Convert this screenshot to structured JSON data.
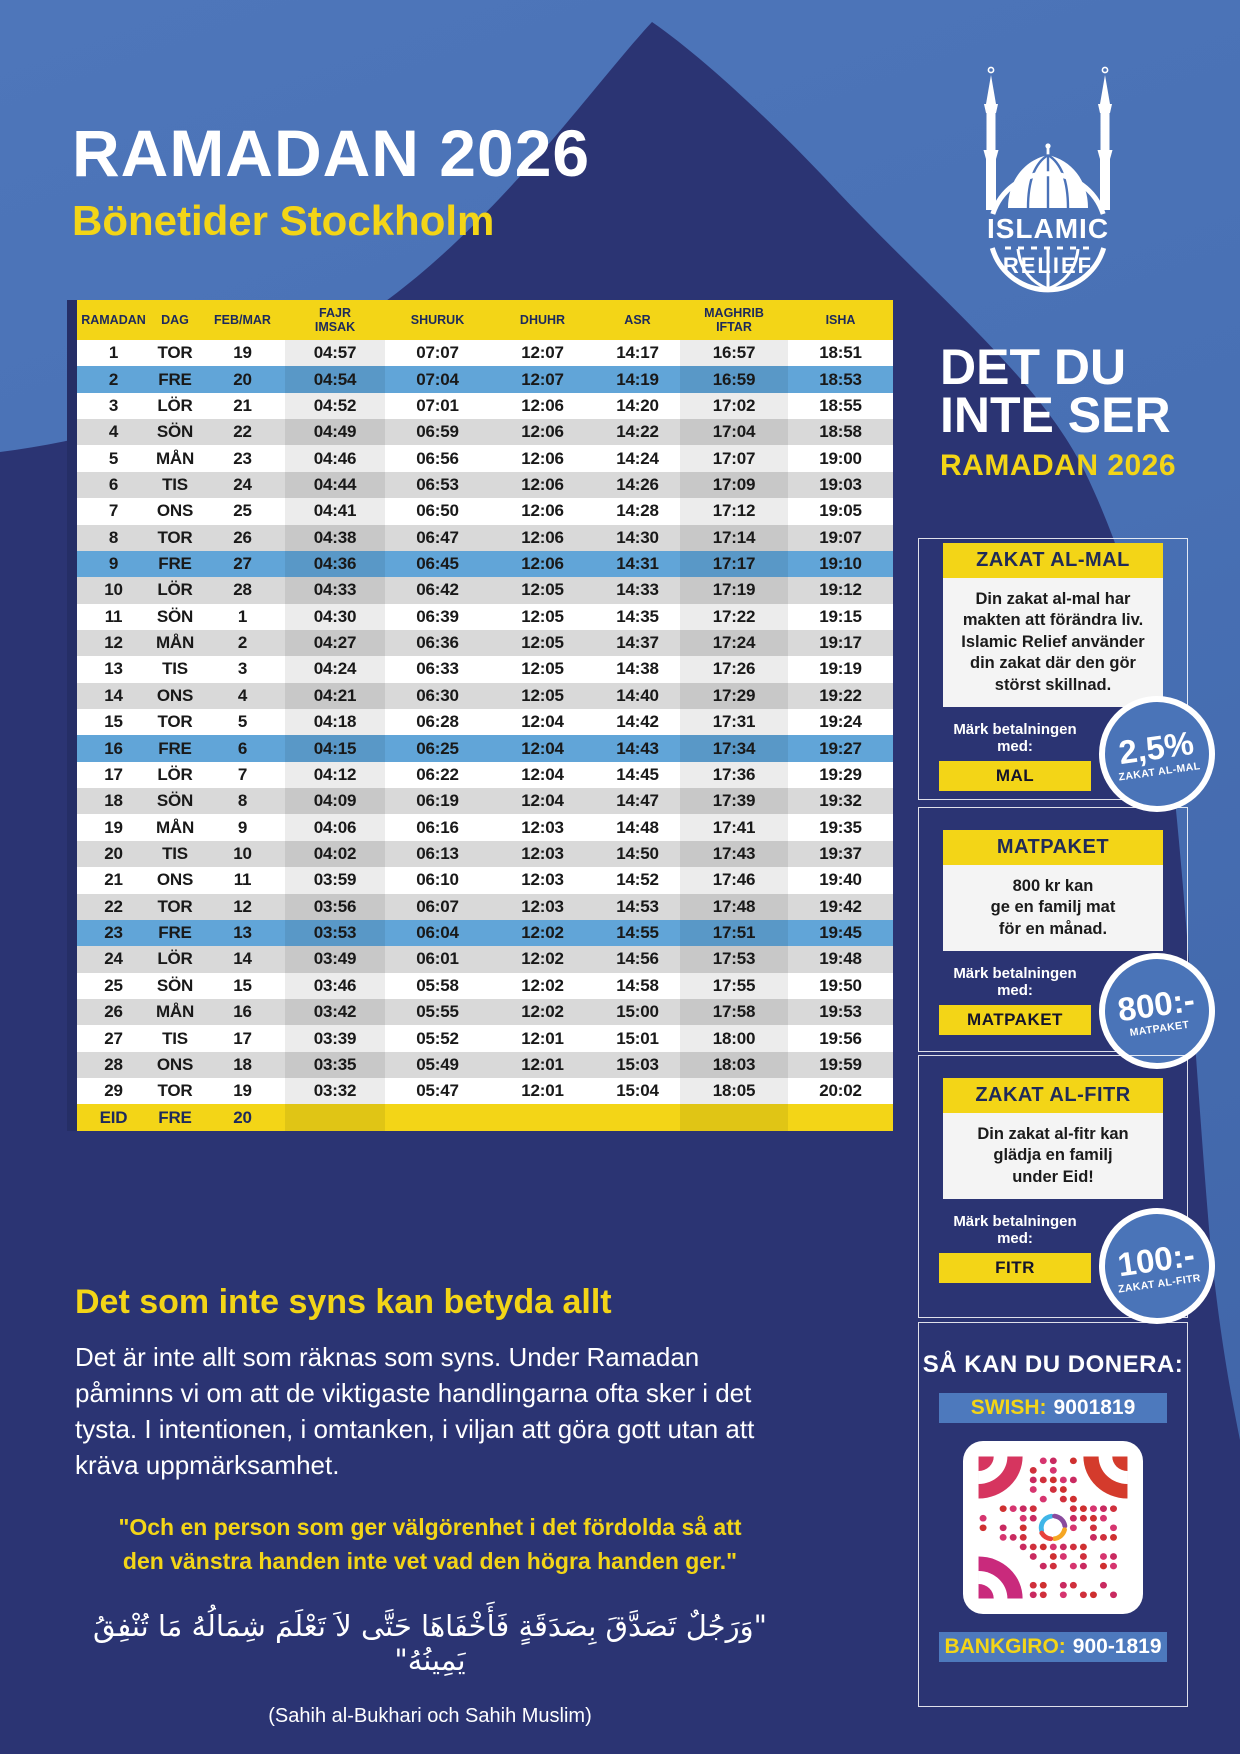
{
  "header": {
    "title": "RAMADAN 2026",
    "subtitle": "Bönetider Stockholm"
  },
  "logo": {
    "line1": "ISLAMIC",
    "line2": "RELIEF"
  },
  "campaign": {
    "title": "DET DU\nINTE SER",
    "subtitle": "RAMADAN 2026"
  },
  "table": {
    "columns": [
      [
        "RAMADAN"
      ],
      [
        "DAG"
      ],
      [
        "FEB/MAR"
      ],
      [
        "FAJR",
        "IMSAK"
      ],
      [
        "SHURUK"
      ],
      [
        "DHUHR"
      ],
      [
        "ASR"
      ],
      [
        "MAGHRIB",
        "IFTAR"
      ],
      [
        "ISHA"
      ]
    ],
    "rows": [
      {
        "ramadan": "1",
        "dag": "TOR",
        "datum": "19",
        "times": [
          "04:57",
          "07:07",
          "12:07",
          "14:17",
          "16:57",
          "18:51"
        ]
      },
      {
        "ramadan": "2",
        "dag": "FRE",
        "datum": "20",
        "times": [
          "04:54",
          "07:04",
          "12:07",
          "14:19",
          "16:59",
          "18:53"
        ]
      },
      {
        "ramadan": "3",
        "dag": "LÖR",
        "datum": "21",
        "times": [
          "04:52",
          "07:01",
          "12:06",
          "14:20",
          "17:02",
          "18:55"
        ]
      },
      {
        "ramadan": "4",
        "dag": "SÖN",
        "datum": "22",
        "times": [
          "04:49",
          "06:59",
          "12:06",
          "14:22",
          "17:04",
          "18:58"
        ]
      },
      {
        "ramadan": "5",
        "dag": "MÅN",
        "datum": "23",
        "times": [
          "04:46",
          "06:56",
          "12:06",
          "14:24",
          "17:07",
          "19:00"
        ]
      },
      {
        "ramadan": "6",
        "dag": "TIS",
        "datum": "24",
        "times": [
          "04:44",
          "06:53",
          "12:06",
          "14:26",
          "17:09",
          "19:03"
        ]
      },
      {
        "ramadan": "7",
        "dag": "ONS",
        "datum": "25",
        "times": [
          "04:41",
          "06:50",
          "12:06",
          "14:28",
          "17:12",
          "19:05"
        ]
      },
      {
        "ramadan": "8",
        "dag": "TOR",
        "datum": "26",
        "times": [
          "04:38",
          "06:47",
          "12:06",
          "14:30",
          "17:14",
          "19:07"
        ]
      },
      {
        "ramadan": "9",
        "dag": "FRE",
        "datum": "27",
        "times": [
          "04:36",
          "06:45",
          "12:06",
          "14:31",
          "17:17",
          "19:10"
        ]
      },
      {
        "ramadan": "10",
        "dag": "LÖR",
        "datum": "28",
        "times": [
          "04:33",
          "06:42",
          "12:05",
          "14:33",
          "17:19",
          "19:12"
        ]
      },
      {
        "ramadan": "11",
        "dag": "SÖN",
        "datum": "1",
        "times": [
          "04:30",
          "06:39",
          "12:05",
          "14:35",
          "17:22",
          "19:15"
        ]
      },
      {
        "ramadan": "12",
        "dag": "MÅN",
        "datum": "2",
        "times": [
          "04:27",
          "06:36",
          "12:05",
          "14:37",
          "17:24",
          "19:17"
        ]
      },
      {
        "ramadan": "13",
        "dag": "TIS",
        "datum": "3",
        "times": [
          "04:24",
          "06:33",
          "12:05",
          "14:38",
          "17:26",
          "19:19"
        ]
      },
      {
        "ramadan": "14",
        "dag": "ONS",
        "datum": "4",
        "times": [
          "04:21",
          "06:30",
          "12:05",
          "14:40",
          "17:29",
          "19:22"
        ]
      },
      {
        "ramadan": "15",
        "dag": "TOR",
        "datum": "5",
        "times": [
          "04:18",
          "06:28",
          "12:04",
          "14:42",
          "17:31",
          "19:24"
        ]
      },
      {
        "ramadan": "16",
        "dag": "FRE",
        "datum": "6",
        "times": [
          "04:15",
          "06:25",
          "12:04",
          "14:43",
          "17:34",
          "19:27"
        ]
      },
      {
        "ramadan": "17",
        "dag": "LÖR",
        "datum": "7",
        "times": [
          "04:12",
          "06:22",
          "12:04",
          "14:45",
          "17:36",
          "19:29"
        ]
      },
      {
        "ramadan": "18",
        "dag": "SÖN",
        "datum": "8",
        "times": [
          "04:09",
          "06:19",
          "12:04",
          "14:47",
          "17:39",
          "19:32"
        ]
      },
      {
        "ramadan": "19",
        "dag": "MÅN",
        "datum": "9",
        "times": [
          "04:06",
          "06:16",
          "12:03",
          "14:48",
          "17:41",
          "19:35"
        ]
      },
      {
        "ramadan": "20",
        "dag": "TIS",
        "datum": "10",
        "times": [
          "04:02",
          "06:13",
          "12:03",
          "14:50",
          "17:43",
          "19:37"
        ]
      },
      {
        "ramadan": "21",
        "dag": "ONS",
        "datum": "11",
        "times": [
          "03:59",
          "06:10",
          "12:03",
          "14:52",
          "17:46",
          "19:40"
        ]
      },
      {
        "ramadan": "22",
        "dag": "TOR",
        "datum": "12",
        "times": [
          "03:56",
          "06:07",
          "12:03",
          "14:53",
          "17:48",
          "19:42"
        ]
      },
      {
        "ramadan": "23",
        "dag": "FRE",
        "datum": "13",
        "times": [
          "03:53",
          "06:04",
          "12:02",
          "14:55",
          "17:51",
          "19:45"
        ]
      },
      {
        "ramadan": "24",
        "dag": "LÖR",
        "datum": "14",
        "times": [
          "03:49",
          "06:01",
          "12:02",
          "14:56",
          "17:53",
          "19:48"
        ]
      },
      {
        "ramadan": "25",
        "dag": "SÖN",
        "datum": "15",
        "times": [
          "03:46",
          "05:58",
          "12:02",
          "14:58",
          "17:55",
          "19:50"
        ]
      },
      {
        "ramadan": "26",
        "dag": "MÅN",
        "datum": "16",
        "times": [
          "03:42",
          "05:55",
          "12:02",
          "15:00",
          "17:58",
          "19:53"
        ]
      },
      {
        "ramadan": "27",
        "dag": "TIS",
        "datum": "17",
        "times": [
          "03:39",
          "05:52",
          "12:01",
          "15:01",
          "18:00",
          "19:56"
        ]
      },
      {
        "ramadan": "28",
        "dag": "ONS",
        "datum": "18",
        "times": [
          "03:35",
          "05:49",
          "12:01",
          "15:03",
          "18:03",
          "19:59"
        ]
      },
      {
        "ramadan": "29",
        "dag": "TOR",
        "datum": "19",
        "times": [
          "03:32",
          "05:47",
          "12:01",
          "15:04",
          "18:05",
          "20:02"
        ]
      }
    ],
    "eid_row": {
      "ramadan": "EID",
      "dag": "FRE",
      "datum": "20"
    }
  },
  "cards": [
    {
      "title": "ZAKAT AL-MAL",
      "body": "Din zakat al-mal har\nmakten att förändra liv.\nIslamic Relief använder\ndin zakat där den gör\nstörst skillnad.",
      "mark_label": "Märk betalningen med:",
      "button": "MAL",
      "badge_value": "2,5%",
      "badge_label": "ZAKAT AL-MAL"
    },
    {
      "title": "MATPAKET",
      "body": "800 kr kan\nge en familj mat\nför en månad.",
      "mark_label": "Märk betalningen med:",
      "button": "MATPAKET",
      "badge_value": "800:-",
      "badge_label": "MATPAKET"
    },
    {
      "title": "ZAKAT AL-FITR",
      "body": "Din zakat al-fitr kan\nglädja en familj\nunder Eid!",
      "mark_label": "Märk betalningen med:",
      "button": "FITR",
      "badge_value": "100:-",
      "badge_label": "ZAKAT AL-FITR"
    }
  ],
  "donate": {
    "title": "SÅ KAN DU DONERA:",
    "swish_label": "SWISH:",
    "swish_number": "9001819",
    "bankgiro_label": "BANKGIRO:",
    "bankgiro_number": "900-1819"
  },
  "footer": {
    "heading": "Det som inte syns kan betyda allt",
    "paragraph": "Det är inte allt som räknas som syns. Under Ramadan påminns vi om att de viktigaste handlingarna ofta sker i det tysta. I intentionen, i omtanken, i viljan att göra gott utan att kräva uppmärksamhet.",
    "quote": "\"Och en person som ger välgörenhet i det fördolda så att\nden vänstra handen inte vet vad den högra handen ger.\"",
    "arabic": "\"وَرَجُلٌ تَصَدَّقَ بِصَدَقَةٍ فَأَخْفَاهَا حَتَّى لاَ تَعْلَمَ شِمَالُهُ مَا تُنْفِقُ يَمِينُهُ\"",
    "source": "(Sahih al-Bukhari och Sahih Muslim)"
  },
  "colors": {
    "accent_yellow": "#f3d517",
    "navy": "#2b3473",
    "base_blue": "#4a72b8",
    "friday_row_blue": "#61a5d8",
    "badge_blue": "#4a74b8",
    "swish_bar_blue": "#4d79bd",
    "qr_red": "#d43b2c",
    "qr_pink": "#c92a7c"
  }
}
